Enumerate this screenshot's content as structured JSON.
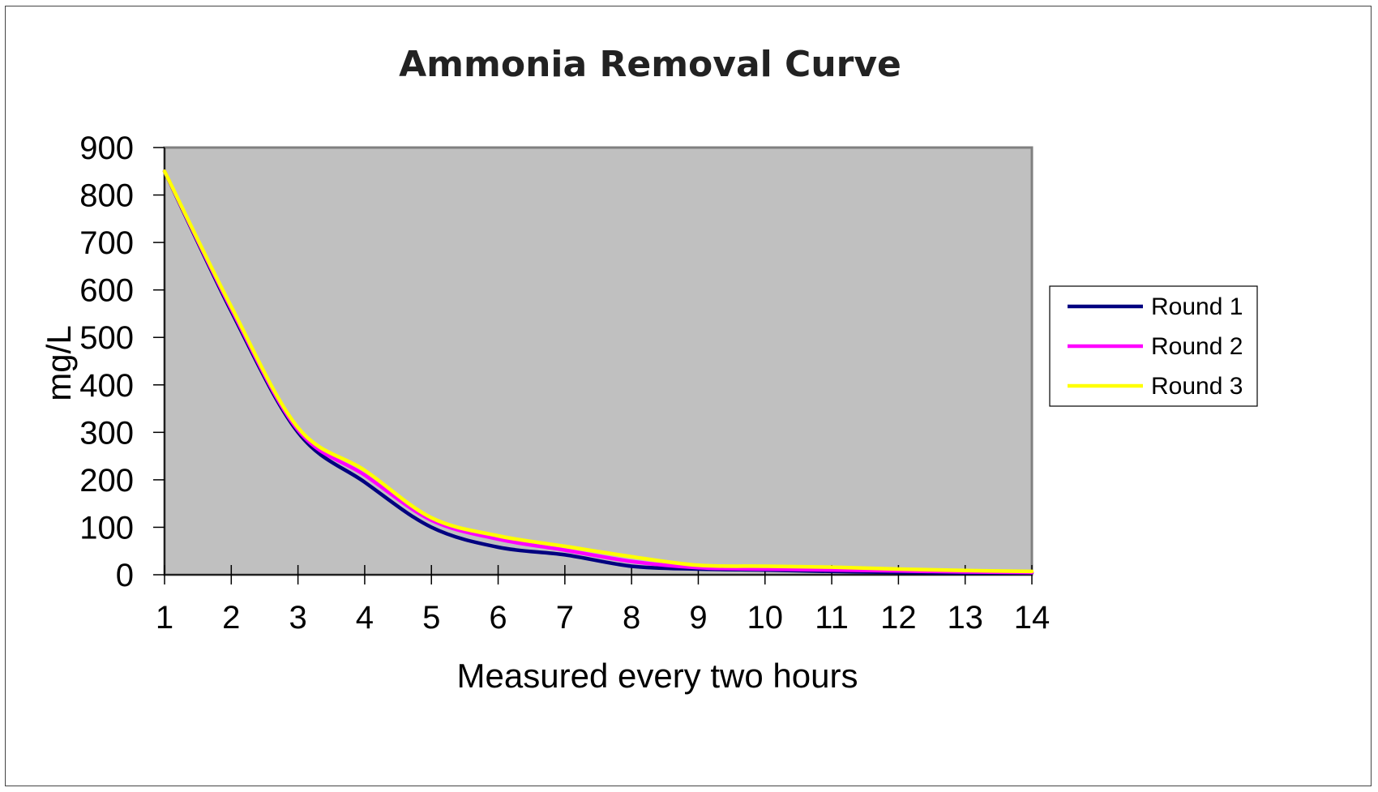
{
  "chart_data": {
    "type": "line",
    "title": "Ammonia Removal Curve",
    "xlabel": "Measured every two hours",
    "ylabel": "mg/L",
    "x": [
      1,
      2,
      3,
      4,
      5,
      6,
      7,
      8,
      9,
      10,
      11,
      12,
      13,
      14
    ],
    "x_tick_labels": [
      "1",
      "2",
      "3",
      "4",
      "5",
      "6",
      "7",
      "8",
      "9",
      "10",
      "11",
      "12",
      "13",
      "14"
    ],
    "ylim": [
      0,
      900
    ],
    "y_ticks": [
      0,
      100,
      200,
      300,
      400,
      500,
      600,
      700,
      800,
      900
    ],
    "y_tick_labels": [
      "0",
      "100",
      "200",
      "300",
      "400",
      "500",
      "600",
      "700",
      "800",
      "900"
    ],
    "grid": false,
    "plot_background": "#c0c0c0",
    "legend_position": "right",
    "series": [
      {
        "name": "Round 1",
        "color": "#000080",
        "values": [
          850,
          555,
          300,
          195,
          100,
          58,
          42,
          18,
          12,
          10,
          7,
          5,
          4,
          4
        ]
      },
      {
        "name": "Round 2",
        "color": "#ff00ff",
        "values": [
          850,
          560,
          305,
          210,
          115,
          75,
          52,
          28,
          15,
          12,
          10,
          8,
          6,
          5
        ]
      },
      {
        "name": "Round 3",
        "color": "#ffff00",
        "values": [
          850,
          565,
          310,
          220,
          120,
          82,
          60,
          38,
          20,
          18,
          16,
          12,
          9,
          7
        ]
      }
    ]
  }
}
